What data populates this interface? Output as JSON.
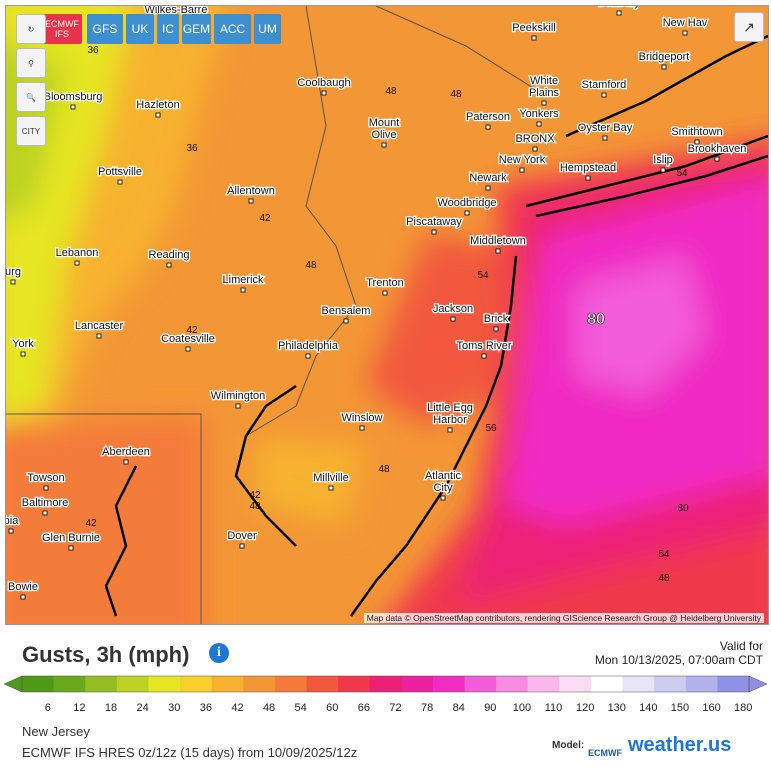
{
  "models": [
    "ECMWF IFS",
    "GFS",
    "UK",
    "IC",
    "GEM",
    "ACC",
    "UM"
  ],
  "city_tool": "CITY",
  "cities": [
    [
      "Danbury"
    ],
    [
      "New Hav"
    ],
    [
      "Wilkes-Barre"
    ],
    [
      "Peekskill"
    ],
    [
      "Bridgeport"
    ],
    [
      "Coolbaugh"
    ],
    [
      "White",
      "Plains"
    ],
    [
      "Stamford"
    ],
    [
      "Bloomsburg"
    ],
    [
      "Hazleton"
    ],
    [
      "Paterson"
    ],
    [
      "Yonkers"
    ],
    [
      "Mount",
      "Olive"
    ],
    [
      "Oyster Bay"
    ],
    [
      "Smithtown"
    ],
    [
      "BRONX"
    ],
    [
      "Brookhaven"
    ],
    [
      "New York"
    ],
    [
      "Islip"
    ],
    [
      "Hempstead"
    ],
    [
      "Pottsville"
    ],
    [
      "Newark"
    ],
    [
      "Allentown"
    ],
    [
      "Woodbridge"
    ],
    [
      "Piscataway"
    ],
    [
      "Middletown"
    ],
    [
      "Lebanon"
    ],
    [
      "Reading"
    ],
    [
      "urg"
    ],
    [
      "Limerick"
    ],
    [
      "Trenton"
    ],
    [
      "Bensalem"
    ],
    [
      "Jackson"
    ],
    [
      "Brick"
    ],
    [
      "Lancaster"
    ],
    [
      "Coatesville"
    ],
    [
      "York"
    ],
    [
      "Philadelphia"
    ],
    [
      "Toms River"
    ],
    [
      "Wilmington"
    ],
    [
      "Winslow"
    ],
    [
      "Little Egg",
      "Harbor"
    ],
    [
      "Aberdeen"
    ],
    [
      "Towson"
    ],
    [
      "Millville"
    ],
    [
      "Atlantic",
      "City"
    ],
    [
      "Baltimore"
    ],
    [
      "bia"
    ],
    [
      "Glen Burnie"
    ],
    [
      "Dover"
    ],
    [
      "Bowie"
    ]
  ],
  "contour_labels": [
    36,
    48,
    48,
    36,
    42,
    48,
    54,
    80,
    42,
    54,
    56,
    48,
    42,
    48,
    42,
    80,
    54,
    48
  ],
  "attribution": "Map data © OpenStreetMap contributors, rendering GIScience Research Group @ Heidelberg University",
  "title": "Gusts, 3h (mph)",
  "valid_label": "Valid for",
  "valid_time": "Mon 10/13/2025, 07:00am CDT",
  "legend": [
    {
      "value": 6,
      "color": "#4e9a18"
    },
    {
      "value": 12,
      "color": "#6aa81c"
    },
    {
      "value": 18,
      "color": "#93bd22"
    },
    {
      "value": 24,
      "color": "#bcd324"
    },
    {
      "value": 30,
      "color": "#e6e622"
    },
    {
      "value": 36,
      "color": "#f8d02c"
    },
    {
      "value": 42,
      "color": "#f6b22f"
    },
    {
      "value": 48,
      "color": "#f39636"
    },
    {
      "value": 54,
      "color": "#f47b3a"
    },
    {
      "value": 60,
      "color": "#f1583d"
    },
    {
      "value": 66,
      "color": "#f0384c"
    },
    {
      "value": 72,
      "color": "#ec2176"
    },
    {
      "value": 78,
      "color": "#ed20a0"
    },
    {
      "value": 84,
      "color": "#f02cc3"
    },
    {
      "value": 90,
      "color": "#f35cd8"
    },
    {
      "value": 100,
      "color": "#f68ce2"
    },
    {
      "value": 110,
      "color": "#f9b8ec"
    },
    {
      "value": 120,
      "color": "#fcdcf4"
    },
    {
      "value": 130,
      "color": "#ffffff"
    },
    {
      "value": 140,
      "color": "#e6e6f6"
    },
    {
      "value": 150,
      "color": "#cdcdf1"
    },
    {
      "value": 160,
      "color": "#b2b2ed"
    },
    {
      "value": 180,
      "color": "#9090e6"
    }
  ],
  "region": "New Jersey",
  "run": "ECMWF IFS HRES 0z/12z (15 days) from 10/09/2025/12z",
  "model_label": "Model:",
  "model_logo": "ECMWF",
  "brand": "weather.us"
}
